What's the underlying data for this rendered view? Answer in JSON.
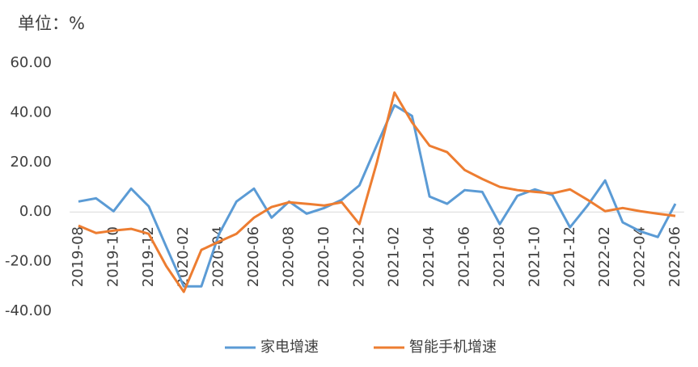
{
  "chart_data": {
    "type": "line",
    "unit_label": "单位：%",
    "categories": [
      "2019-08",
      null,
      "2019-10",
      null,
      "2019-12",
      null,
      "2020-02",
      null,
      "2020-04",
      null,
      "2020-06",
      null,
      "2020-08",
      null,
      "2020-10",
      null,
      "2020-12",
      null,
      "2021-02",
      null,
      "2021-04",
      null,
      "2021-06",
      null,
      "2021-08",
      null,
      "2021-10",
      null,
      "2021-12",
      null,
      "2022-02",
      null,
      "2022-04",
      null,
      "2022-06"
    ],
    "series": [
      {
        "name": "家电增速",
        "color": "#5b9bd5",
        "values": [
          4.2,
          5.5,
          0.3,
          9.4,
          2.3,
          -14,
          -30,
          -30,
          -9,
          4.2,
          9.4,
          -2.3,
          4.2,
          -0.7,
          1.6,
          4.9,
          10.7,
          27,
          43,
          38.7,
          6.2,
          3.3,
          8.8,
          8.1,
          -4.9,
          6.5,
          9.1,
          6.8,
          -6.2,
          2.6,
          12.7,
          -4.2,
          -7.8,
          -10.1,
          3.3
        ]
      },
      {
        "name": "智能手机增速",
        "color": "#ed7d31",
        "values": [
          -5.5,
          -8.5,
          -7.5,
          -6.8,
          -8.8,
          -21.8,
          -32.2,
          -15.3,
          -12,
          -8.8,
          -2.3,
          2,
          3.9,
          3.3,
          2.6,
          3.9,
          -4.9,
          20,
          48.1,
          36.1,
          26.7,
          24.1,
          16.9,
          13.3,
          10.1,
          8.8,
          8.1,
          7.5,
          9.1,
          4.9,
          0.3,
          1.6,
          0.3,
          -0.7,
          -1.6
        ]
      }
    ],
    "ylim": [
      -40,
      60
    ],
    "yticks": [
      {
        "value": -40,
        "label": "-40.00"
      },
      {
        "value": -20,
        "label": "-20.00"
      },
      {
        "value": 0,
        "label": "0.00"
      },
      {
        "value": 20,
        "label": "20.00"
      },
      {
        "value": 40,
        "label": "40.00"
      },
      {
        "value": 60,
        "label": "60.00"
      }
    ],
    "legend": "bottom"
  }
}
